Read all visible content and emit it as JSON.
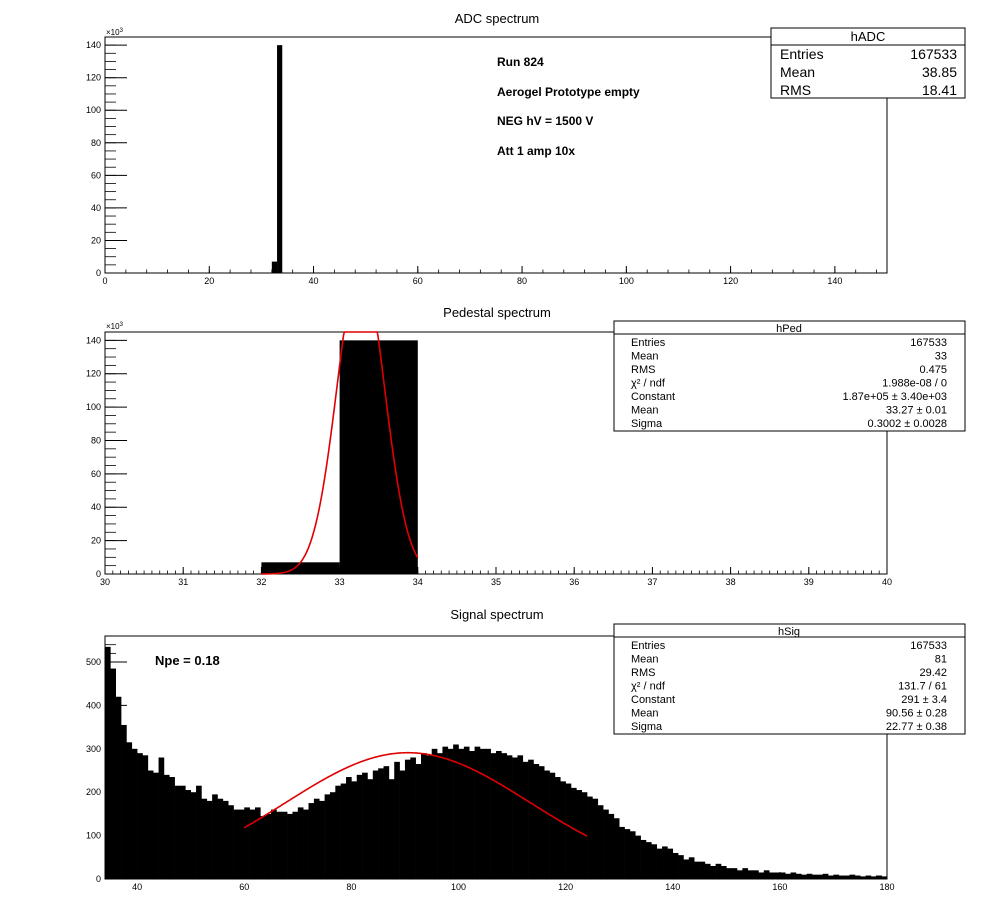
{
  "chart_data": [
    {
      "type": "bar",
      "title": "ADC spectrum",
      "y_exponent_label": "×10",
      "y_exponent_power": "3",
      "xlim": [
        0,
        150
      ],
      "ylim": [
        0,
        145
      ],
      "x_ticks": [
        "0",
        "20",
        "40",
        "60",
        "80",
        "100",
        "120",
        "140"
      ],
      "y_ticks": [
        "0",
        "20",
        "40",
        "60",
        "80",
        "100",
        "120",
        "140"
      ],
      "bars": [
        {
          "x0": 32,
          "x1": 33,
          "value": 7
        },
        {
          "x0": 33,
          "x1": 34,
          "value": 140
        }
      ],
      "annotations": [
        "Run  824",
        "Aerogel Prototype empty",
        "NEG hV = 1500 V",
        "Att 1 amp 10x"
      ],
      "stats": {
        "name": "hADC",
        "rows": [
          {
            "label": "Entries",
            "value": "167533"
          },
          {
            "label": "Mean",
            "value": "38.85"
          },
          {
            "label": "RMS",
            "value": "18.41"
          }
        ]
      }
    },
    {
      "type": "bar",
      "title": "Pedestal spectrum",
      "y_exponent_label": "×10",
      "y_exponent_power": "3",
      "xlim": [
        30,
        40
      ],
      "ylim": [
        0,
        145
      ],
      "x_ticks": [
        "30",
        "31",
        "32",
        "33",
        "34",
        "35",
        "36",
        "37",
        "38",
        "39",
        "40"
      ],
      "y_ticks": [
        "0",
        "20",
        "40",
        "60",
        "80",
        "100",
        "120",
        "140"
      ],
      "bars": [
        {
          "x0": 32,
          "x1": 33,
          "value": 7
        },
        {
          "x0": 33,
          "x1": 34,
          "value": 140
        }
      ],
      "fit": {
        "type": "gaussian",
        "color": "#e00000",
        "constant": 187000,
        "mean": 33.27,
        "sigma": 0.3002,
        "range": [
          32,
          34
        ],
        "scale": 0.001
      },
      "stats": {
        "name": "hPed",
        "rows": [
          {
            "label": "Entries",
            "value": "167533"
          },
          {
            "label": "Mean",
            "value": "33"
          },
          {
            "label": "RMS",
            "value": "0.475"
          },
          {
            "label": "χ² / ndf",
            "value": "1.988e-08 / 0"
          },
          {
            "label": "Constant",
            "value": "1.87e+05 ± 3.40e+03"
          },
          {
            "label": "Mean",
            "value": "33.27 ± 0.01"
          },
          {
            "label": "Sigma",
            "value": "0.3002 ± 0.0028"
          }
        ]
      }
    },
    {
      "type": "bar",
      "title": "Signal spectrum",
      "xlim": [
        34,
        180
      ],
      "ylim": [
        0,
        560
      ],
      "x_ticks": [
        "40",
        "60",
        "80",
        "100",
        "120",
        "140",
        "160",
        "180"
      ],
      "y_ticks": [
        "0",
        "100",
        "200",
        "300",
        "400",
        "500"
      ],
      "bin_start": 34,
      "bin_width": 1,
      "values": [
        535,
        485,
        420,
        355,
        315,
        300,
        290,
        285,
        250,
        245,
        280,
        240,
        235,
        215,
        215,
        205,
        200,
        215,
        185,
        180,
        195,
        185,
        180,
        170,
        160,
        160,
        165,
        160,
        165,
        145,
        150,
        160,
        155,
        155,
        150,
        155,
        165,
        160,
        175,
        185,
        180,
        195,
        200,
        215,
        220,
        235,
        225,
        240,
        245,
        230,
        250,
        255,
        260,
        230,
        270,
        250,
        275,
        280,
        265,
        290,
        285,
        300,
        290,
        305,
        300,
        310,
        300,
        305,
        295,
        305,
        300,
        300,
        290,
        295,
        290,
        285,
        280,
        285,
        270,
        275,
        265,
        260,
        250,
        245,
        235,
        225,
        220,
        210,
        205,
        200,
        190,
        185,
        170,
        160,
        150,
        140,
        120,
        115,
        110,
        100,
        90,
        85,
        80,
        70,
        75,
        70,
        60,
        55,
        45,
        50,
        40,
        40,
        35,
        30,
        35,
        30,
        25,
        25,
        20,
        25,
        20,
        20,
        15,
        20,
        15,
        15,
        15,
        12,
        15,
        12,
        10,
        12,
        10,
        10,
        12,
        8,
        10,
        8,
        8,
        10,
        8,
        6,
        8,
        6,
        8,
        6
      ],
      "fit": {
        "type": "gaussian",
        "color": "#e00000",
        "constant": 291,
        "mean": 90.56,
        "sigma": 22.77,
        "range": [
          60,
          124
        ],
        "scale": 1
      },
      "annotations": [
        "Npe = 0.18"
      ],
      "stats": {
        "name": "hSig",
        "rows": [
          {
            "label": "Entries",
            "value": "167533"
          },
          {
            "label": "Mean",
            "value": "81"
          },
          {
            "label": "RMS",
            "value": "29.42"
          },
          {
            "label": "χ² / ndf",
            "value": "131.7 / 61"
          },
          {
            "label": "Constant",
            "value": "291 ± 3.4"
          },
          {
            "label": "Mean",
            "value": "90.56 ± 0.28"
          },
          {
            "label": "Sigma",
            "value": "22.77 ± 0.38"
          }
        ]
      }
    }
  ]
}
